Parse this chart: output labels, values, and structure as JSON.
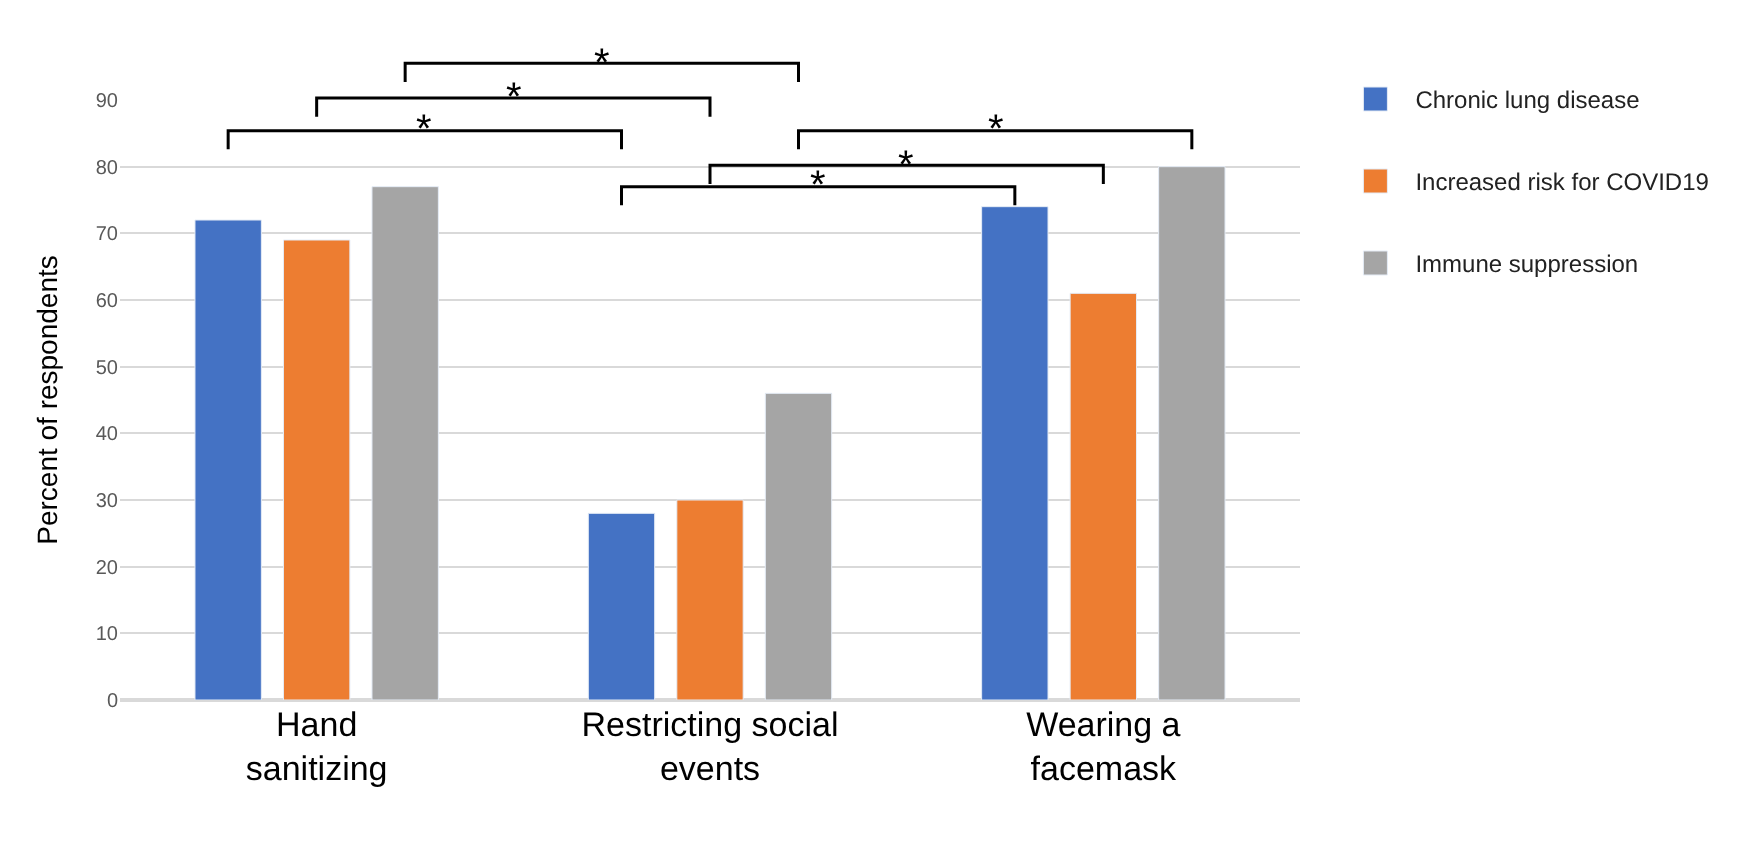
{
  "chart_data": {
    "type": "bar",
    "ylabel": "Percent of respondents",
    "categories": [
      "Hand sanitizing",
      "Restricting social events",
      "Wearing a facemask"
    ],
    "series": [
      {
        "name": "Chronic lung disease",
        "color": "#4472c4",
        "values": [
          72,
          28,
          74
        ]
      },
      {
        "name": "Increased risk for COVID19",
        "color": "#ed7d31",
        "values": [
          69,
          30,
          61
        ]
      },
      {
        "name": "Immune suppression",
        "color": "#a5a5a5",
        "values": [
          77,
          46,
          80
        ]
      }
    ],
    "ylim": [
      0,
      90
    ],
    "yticks": [
      0,
      10,
      20,
      30,
      40,
      50,
      60,
      70,
      80,
      90
    ],
    "grid": "y",
    "legend": "top right",
    "annotations": [
      "*",
      "*",
      "*",
      "*",
      "*",
      "*"
    ]
  }
}
